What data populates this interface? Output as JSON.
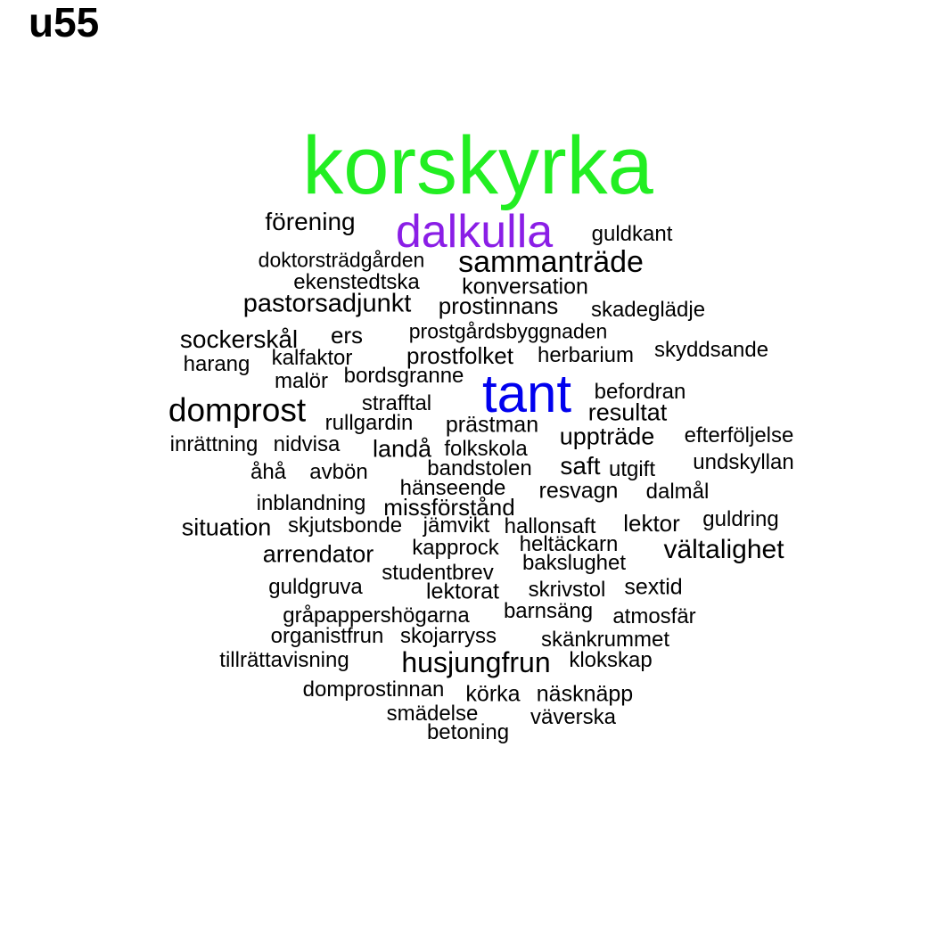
{
  "title": "u55",
  "colors": {
    "background": "#ffffff",
    "default_word": "#000000",
    "korskyrka": "#22ee22",
    "dalkulla": "#8a1ee6",
    "tant": "#0000ee"
  },
  "words": [
    {
      "text": "korskyrka",
      "color": "#22ee22"
    },
    {
      "text": "dalkulla",
      "color": "#8a1ee6"
    },
    {
      "text": "tant",
      "color": "#0000ee"
    },
    {
      "text": "förening"
    },
    {
      "text": "guldkant"
    },
    {
      "text": "doktorsträdgården"
    },
    {
      "text": "sammanträde"
    },
    {
      "text": "ekenstedtska"
    },
    {
      "text": "konversation"
    },
    {
      "text": "pastorsadjunkt"
    },
    {
      "text": "prostinnans"
    },
    {
      "text": "skadeglädje"
    },
    {
      "text": "sockerskål"
    },
    {
      "text": "ers"
    },
    {
      "text": "prostgårdsbyggnaden"
    },
    {
      "text": "harang"
    },
    {
      "text": "kalfaktor"
    },
    {
      "text": "prostfolket"
    },
    {
      "text": "herbarium"
    },
    {
      "text": "skyddsande"
    },
    {
      "text": "malör"
    },
    {
      "text": "bordsgranne"
    },
    {
      "text": "befordran"
    },
    {
      "text": "domprost"
    },
    {
      "text": "strafftal"
    },
    {
      "text": "resultat"
    },
    {
      "text": "rullgardin"
    },
    {
      "text": "prästman"
    },
    {
      "text": "uppträde"
    },
    {
      "text": "efterföljelse"
    },
    {
      "text": "inrättning"
    },
    {
      "text": "nidvisa"
    },
    {
      "text": "landå"
    },
    {
      "text": "folkskola"
    },
    {
      "text": "åhå"
    },
    {
      "text": "avbön"
    },
    {
      "text": "bandstolen"
    },
    {
      "text": "saft"
    },
    {
      "text": "utgift"
    },
    {
      "text": "undskyllan"
    },
    {
      "text": "hänseende"
    },
    {
      "text": "resvagn"
    },
    {
      "text": "dalmål"
    },
    {
      "text": "inblandning"
    },
    {
      "text": "missförstånd"
    },
    {
      "text": "situation"
    },
    {
      "text": "skjutsbonde"
    },
    {
      "text": "jämvikt"
    },
    {
      "text": "hallonsaft"
    },
    {
      "text": "lektor"
    },
    {
      "text": "guldring"
    },
    {
      "text": "arrendator"
    },
    {
      "text": "kapprock"
    },
    {
      "text": "heltäckarn"
    },
    {
      "text": "vältalighet"
    },
    {
      "text": "studentbrev"
    },
    {
      "text": "bakslughet"
    },
    {
      "text": "guldgruva"
    },
    {
      "text": "lektorat"
    },
    {
      "text": "skrivstol"
    },
    {
      "text": "sextid"
    },
    {
      "text": "gråpappershögarna"
    },
    {
      "text": "barnsäng"
    },
    {
      "text": "atmosfär"
    },
    {
      "text": "organistfrun"
    },
    {
      "text": "skojarryss"
    },
    {
      "text": "skänkrummet"
    },
    {
      "text": "tillrättavisning"
    },
    {
      "text": "husjungfrun"
    },
    {
      "text": "klokskap"
    },
    {
      "text": "domprostinnan"
    },
    {
      "text": "körka"
    },
    {
      "text": "näsknäpp"
    },
    {
      "text": "smädelse"
    },
    {
      "text": "väverska"
    },
    {
      "text": "betoning"
    }
  ]
}
